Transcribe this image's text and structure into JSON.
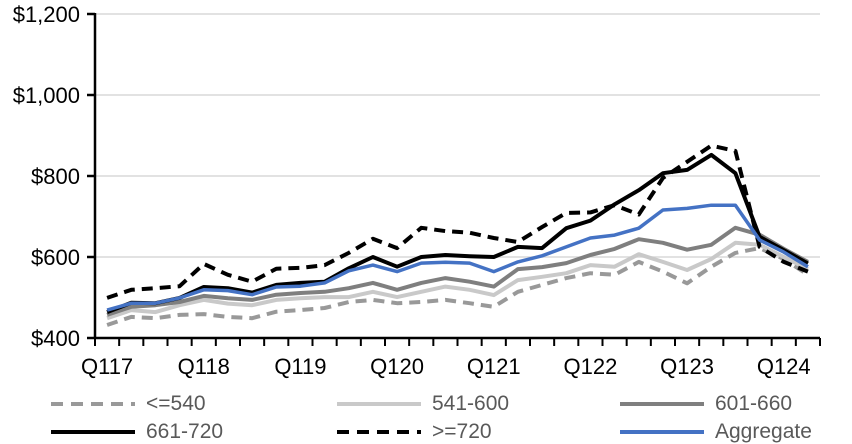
{
  "chart_data": {
    "type": "line",
    "title": "",
    "xlabel": "",
    "ylabel": "",
    "x": [
      "Q117",
      "Q217",
      "Q317",
      "Q417",
      "Q118",
      "Q218",
      "Q318",
      "Q418",
      "Q119",
      "Q219",
      "Q319",
      "Q419",
      "Q120",
      "Q220",
      "Q320",
      "Q420",
      "Q121",
      "Q221",
      "Q321",
      "Q421",
      "Q122",
      "Q222",
      "Q322",
      "Q422",
      "Q123",
      "Q223",
      "Q323",
      "Q423",
      "Q124",
      "Q224"
    ],
    "x_axis_tick_labels": [
      "Q117",
      "Q118",
      "Q119",
      "Q120",
      "Q121",
      "Q122",
      "Q123",
      "Q124"
    ],
    "x_label_every": 4,
    "ylim": [
      400,
      1200
    ],
    "ytick_step": 200,
    "y_tick_labels": [
      "$400",
      "$600",
      "$800",
      "$1,000",
      "$1,200"
    ],
    "grid": "horizontal-only",
    "legend_position": "bottom",
    "series": [
      {
        "name": "<=540",
        "color": "#999999",
        "dash": true,
        "values": [
          432,
          452,
          449,
          457,
          459,
          452,
          449,
          465,
          469,
          474,
          489,
          494,
          486,
          489,
          494,
          486,
          477,
          514,
          531,
          548,
          560,
          556,
          588,
          564,
          535,
          576,
          610,
          622,
          595,
          556
        ]
      },
      {
        "name": "541-600",
        "color": "#c9c9c9",
        "dash": false,
        "values": [
          449,
          469,
          464,
          481,
          494,
          485,
          481,
          494,
          498,
          501,
          501,
          514,
          501,
          514,
          527,
          519,
          506,
          543,
          551,
          560,
          580,
          576,
          607,
          588,
          568,
          595,
          635,
          630,
          600,
          570
        ]
      },
      {
        "name": "601-660",
        "color": "#7f7f7f",
        "dash": false,
        "values": [
          457,
          477,
          481,
          489,
          504,
          498,
          494,
          507,
          511,
          514,
          523,
          536,
          519,
          536,
          548,
          539,
          527,
          570,
          575,
          585,
          605,
          620,
          644,
          635,
          618,
          630,
          672,
          655,
          620,
          588
        ]
      },
      {
        "name": "661-720",
        "color": "#000000",
        "dash": false,
        "values": [
          464,
          487,
          486,
          499,
          526,
          523,
          512,
          531,
          536,
          539,
          572,
          600,
          576,
          600,
          605,
          602,
          600,
          625,
          622,
          671,
          690,
          730,
          765,
          807,
          815,
          852,
          807,
          650,
          617,
          584
        ]
      },
      {
        "name": ">=720",
        "color": "#000000",
        "dash": true,
        "values": [
          499,
          519,
          523,
          528,
          583,
          556,
          539,
          571,
          573,
          580,
          610,
          645,
          622,
          672,
          664,
          660,
          647,
          637,
          674,
          709,
          710,
          728,
          705,
          795,
          835,
          875,
          862,
          625,
          588,
          564
        ]
      },
      {
        "name": "Aggregate",
        "color": "#4472c4",
        "dash": false,
        "values": [
          469,
          486,
          486,
          499,
          519,
          517,
          507,
          526,
          528,
          536,
          566,
          580,
          564,
          585,
          587,
          585,
          564,
          588,
          603,
          625,
          647,
          654,
          671,
          716,
          720,
          728,
          728,
          642,
          612,
          576
        ]
      }
    ]
  },
  "colors": {
    "axis": "#000000",
    "tick_label": "#000000",
    "gridline": "#d9d9d9",
    "legend_text": "#595959",
    "background": "#ffffff"
  }
}
